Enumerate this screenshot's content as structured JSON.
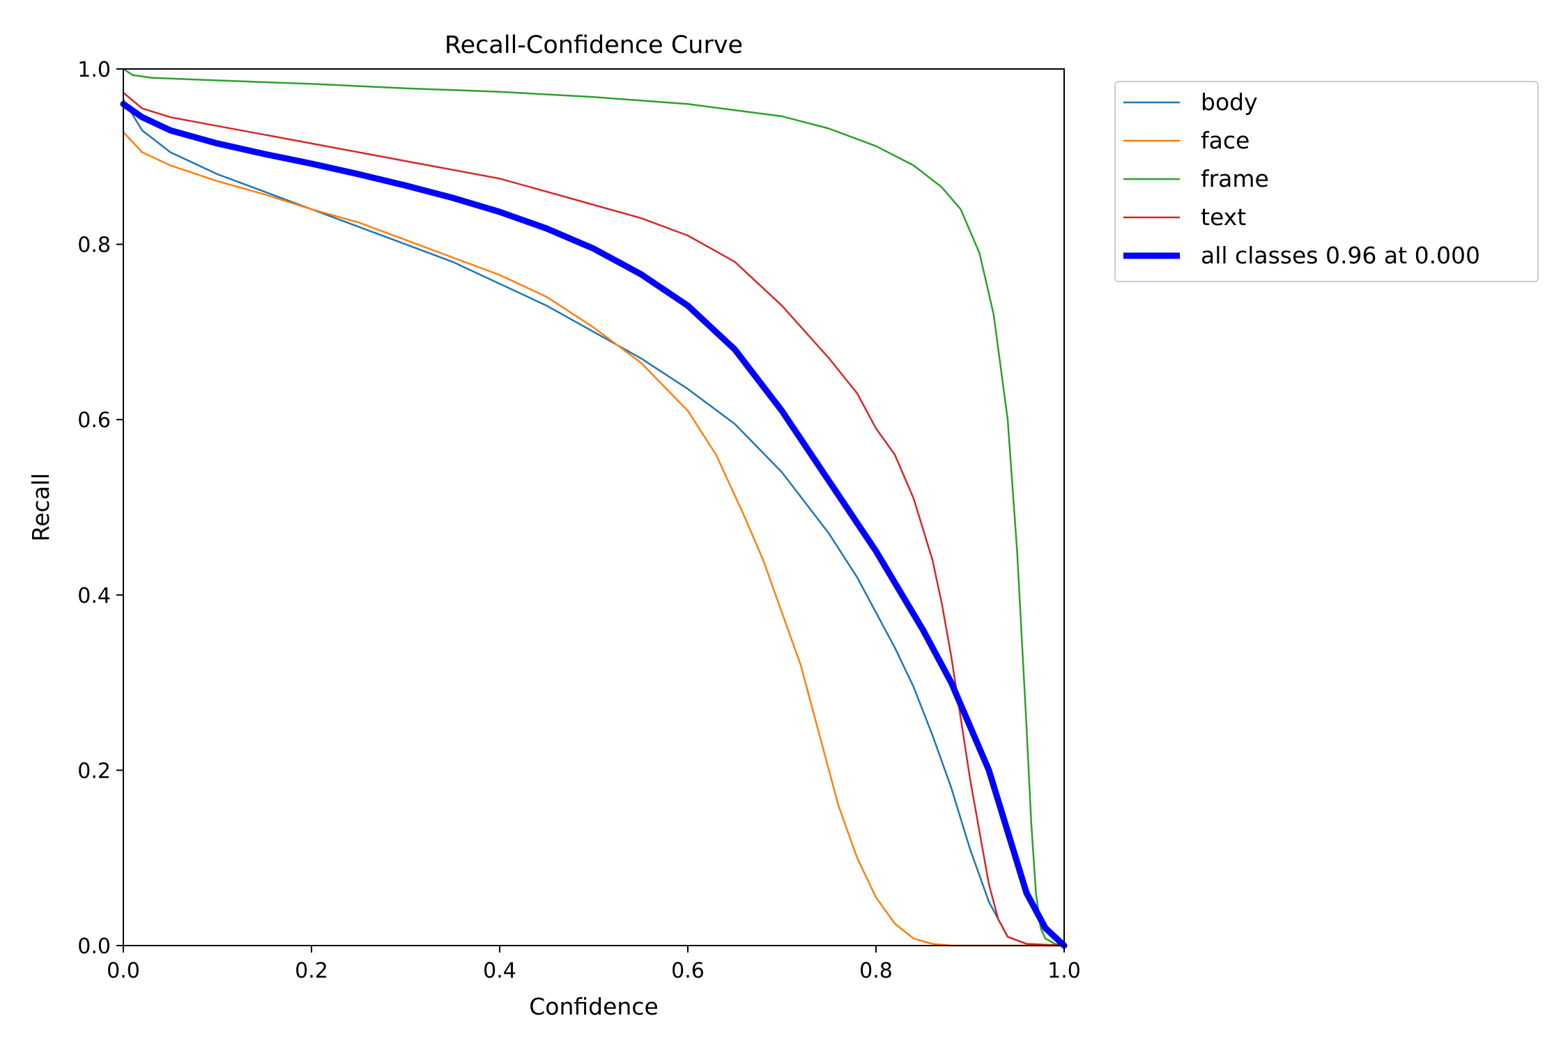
{
  "chart_data": {
    "type": "line",
    "title": "Recall-Confidence Curve",
    "xlabel": "Confidence",
    "ylabel": "Recall",
    "xlim": [
      0,
      1
    ],
    "ylim": [
      0,
      1
    ],
    "xticks": [
      "0.0",
      "0.2",
      "0.4",
      "0.6",
      "0.8",
      "1.0"
    ],
    "yticks": [
      "0.0",
      "0.2",
      "0.4",
      "0.6",
      "0.8",
      "1.0"
    ],
    "grid": false,
    "legend_position": "outside upper-right",
    "series": [
      {
        "name": "body",
        "color": "#1f77b4",
        "x": [
          0.0,
          0.02,
          0.05,
          0.1,
          0.15,
          0.2,
          0.25,
          0.3,
          0.35,
          0.4,
          0.45,
          0.5,
          0.55,
          0.6,
          0.65,
          0.7,
          0.75,
          0.78,
          0.8,
          0.82,
          0.84,
          0.86,
          0.88,
          0.9,
          0.92,
          0.94,
          0.96,
          0.98,
          1.0
        ],
        "values": [
          0.965,
          0.93,
          0.905,
          0.88,
          0.86,
          0.84,
          0.82,
          0.8,
          0.78,
          0.755,
          0.73,
          0.7,
          0.67,
          0.635,
          0.595,
          0.54,
          0.47,
          0.42,
          0.38,
          0.34,
          0.295,
          0.24,
          0.18,
          0.11,
          0.05,
          0.01,
          0.002,
          0.0,
          0.0
        ]
      },
      {
        "name": "face",
        "color": "#ff7f0e",
        "x": [
          0.0,
          0.02,
          0.05,
          0.1,
          0.15,
          0.2,
          0.25,
          0.3,
          0.35,
          0.4,
          0.45,
          0.5,
          0.55,
          0.6,
          0.63,
          0.66,
          0.68,
          0.7,
          0.72,
          0.74,
          0.76,
          0.78,
          0.8,
          0.82,
          0.84,
          0.86,
          0.88,
          0.9,
          0.95,
          1.0
        ],
        "values": [
          0.928,
          0.905,
          0.89,
          0.872,
          0.857,
          0.84,
          0.825,
          0.805,
          0.785,
          0.765,
          0.74,
          0.705,
          0.665,
          0.61,
          0.56,
          0.49,
          0.44,
          0.38,
          0.32,
          0.24,
          0.16,
          0.1,
          0.055,
          0.025,
          0.008,
          0.002,
          0.0,
          0.0,
          0.0,
          0.0
        ]
      },
      {
        "name": "frame",
        "color": "#2ca02c",
        "x": [
          0.0,
          0.01,
          0.03,
          0.1,
          0.2,
          0.3,
          0.4,
          0.5,
          0.6,
          0.7,
          0.75,
          0.8,
          0.84,
          0.87,
          0.89,
          0.91,
          0.925,
          0.94,
          0.95,
          0.96,
          0.965,
          0.97,
          0.975,
          0.98,
          0.99,
          1.0
        ],
        "values": [
          1.0,
          0.993,
          0.99,
          0.987,
          0.983,
          0.978,
          0.974,
          0.968,
          0.96,
          0.946,
          0.932,
          0.912,
          0.89,
          0.865,
          0.84,
          0.79,
          0.72,
          0.6,
          0.45,
          0.25,
          0.14,
          0.06,
          0.02,
          0.008,
          0.002,
          0.0
        ]
      },
      {
        "name": "text",
        "color": "#d62728",
        "x": [
          0.0,
          0.02,
          0.05,
          0.1,
          0.15,
          0.2,
          0.25,
          0.3,
          0.35,
          0.4,
          0.45,
          0.5,
          0.55,
          0.6,
          0.65,
          0.7,
          0.75,
          0.78,
          0.8,
          0.82,
          0.84,
          0.86,
          0.87,
          0.88,
          0.89,
          0.9,
          0.91,
          0.92,
          0.93,
          0.94,
          0.96,
          1.0
        ],
        "values": [
          0.973,
          0.955,
          0.945,
          0.935,
          0.925,
          0.915,
          0.905,
          0.895,
          0.885,
          0.875,
          0.86,
          0.845,
          0.83,
          0.81,
          0.78,
          0.73,
          0.67,
          0.63,
          0.59,
          0.56,
          0.51,
          0.44,
          0.39,
          0.33,
          0.26,
          0.19,
          0.13,
          0.07,
          0.03,
          0.01,
          0.002,
          0.0
        ]
      },
      {
        "name": "all classes 0.96 at 0.000",
        "color": "#0000ff",
        "thick": true,
        "x": [
          0.0,
          0.02,
          0.05,
          0.1,
          0.15,
          0.2,
          0.25,
          0.3,
          0.35,
          0.4,
          0.45,
          0.5,
          0.55,
          0.6,
          0.65,
          0.7,
          0.75,
          0.8,
          0.85,
          0.88,
          0.9,
          0.92,
          0.94,
          0.96,
          0.98,
          1.0
        ],
        "values": [
          0.96,
          0.945,
          0.93,
          0.915,
          0.903,
          0.892,
          0.88,
          0.867,
          0.853,
          0.837,
          0.818,
          0.795,
          0.766,
          0.73,
          0.68,
          0.61,
          0.53,
          0.45,
          0.36,
          0.3,
          0.25,
          0.2,
          0.13,
          0.06,
          0.02,
          0.0
        ]
      }
    ]
  }
}
